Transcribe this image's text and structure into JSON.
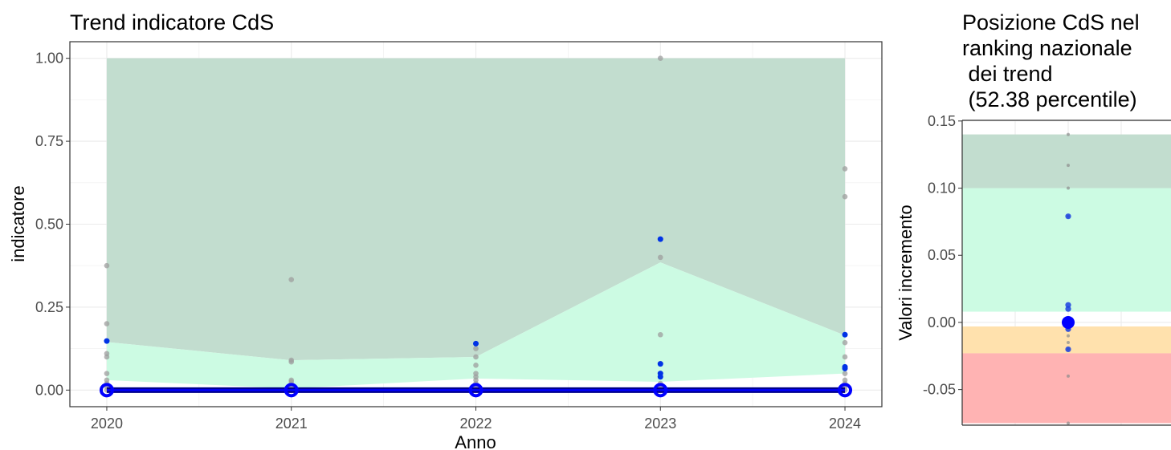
{
  "chart_data": [
    {
      "type": "line",
      "title": "Trend indicatore CdS",
      "xlabel": "Anno",
      "ylabel": "indicatore",
      "x": [
        2020,
        2021,
        2022,
        2023,
        2024
      ],
      "xlim": [
        2019.8,
        2024.2
      ],
      "ylim": [
        -0.05,
        1.05
      ],
      "xticks": [
        "2020",
        "2021",
        "2022",
        "2023",
        "2024"
      ],
      "yticks": [
        "0.00",
        "0.25",
        "0.50",
        "0.75",
        "1.00"
      ],
      "grid": true,
      "bands": [
        {
          "color": "#c2ddcf",
          "lower": [
            0.145,
            0.09,
            0.1,
            0.385,
            0.165
          ],
          "upper": [
            1.0,
            1.0,
            1.0,
            1.0,
            1.0
          ]
        },
        {
          "color": "#ccfbe3",
          "lower": [
            0.03,
            0.005,
            0.035,
            0.025,
            0.05
          ],
          "upper": [
            0.145,
            0.09,
            0.1,
            0.385,
            0.165
          ]
        }
      ],
      "grey_points": [
        {
          "x": 2020,
          "y": [
            0.375,
            0.2,
            0.11,
            0.1,
            0.05,
            0.03,
            0.02,
            0.01,
            0.0
          ]
        },
        {
          "x": 2021,
          "y": [
            0.333,
            0.09,
            0.085,
            0.03,
            0.025,
            0.01,
            0.0
          ]
        },
        {
          "x": 2022,
          "y": [
            0.125,
            0.1,
            0.075,
            0.05,
            0.04,
            0.03,
            0.02,
            0.01,
            0.0
          ]
        },
        {
          "x": 2023,
          "y": [
            1.0,
            0.4,
            0.167,
            0.08,
            0.04,
            0.02,
            0.01,
            0.0
          ]
        },
        {
          "x": 2024,
          "y": [
            0.667,
            0.583,
            0.143,
            0.1,
            0.07,
            0.05,
            0.03,
            0.02,
            0.01,
            0.0
          ]
        }
      ],
      "blue_points": [
        {
          "x": 2020,
          "y": [
            0.148,
            0.0
          ]
        },
        {
          "x": 2021,
          "y": [
            0.0
          ]
        },
        {
          "x": 2022,
          "y": [
            0.14,
            0.0
          ]
        },
        {
          "x": 2023,
          "y": [
            0.455,
            0.079,
            0.05,
            0.04,
            0.0
          ]
        },
        {
          "x": 2024,
          "y": [
            0.167,
            0.07,
            0.065,
            0.0
          ]
        }
      ],
      "line_series": {
        "color": "#0000ff",
        "values": [
          0,
          0,
          0,
          0,
          0
        ]
      }
    },
    {
      "type": "scatter",
      "title_lines": [
        "Posizione CdS nel",
        "ranking nazionale",
        " dei trend",
        " (52.38 percentile)"
      ],
      "ylabel": "Valori incremento",
      "ylim": [
        -0.0765,
        0.1505
      ],
      "yticks": [
        "-0.05",
        "0.00",
        "0.05",
        "0.10",
        "0.15"
      ],
      "ytick_values": [
        -0.05,
        0.0,
        0.05,
        0.1,
        0.15
      ],
      "grid": true,
      "bands": [
        {
          "color": "#c2ddcf",
          "from": 0.1,
          "to": 0.14
        },
        {
          "color": "#ccfbe3",
          "from": 0.008,
          "to": 0.1
        },
        {
          "color": "#ffe1ad",
          "from": -0.023,
          "to": -0.003
        },
        {
          "color": "#ffb3b3",
          "from": -0.075,
          "to": -0.023
        }
      ],
      "grey_points": [
        0.14,
        0.117,
        0.1,
        0.079,
        0.0,
        -0.005,
        -0.01,
        -0.015,
        -0.02,
        -0.04,
        -0.075
      ],
      "blue_points": [
        0.079,
        0.013,
        0.01,
        0.0,
        -0.005,
        -0.02
      ],
      "highlight_point": {
        "value": 0.0,
        "color": "#0000ff"
      }
    }
  ]
}
